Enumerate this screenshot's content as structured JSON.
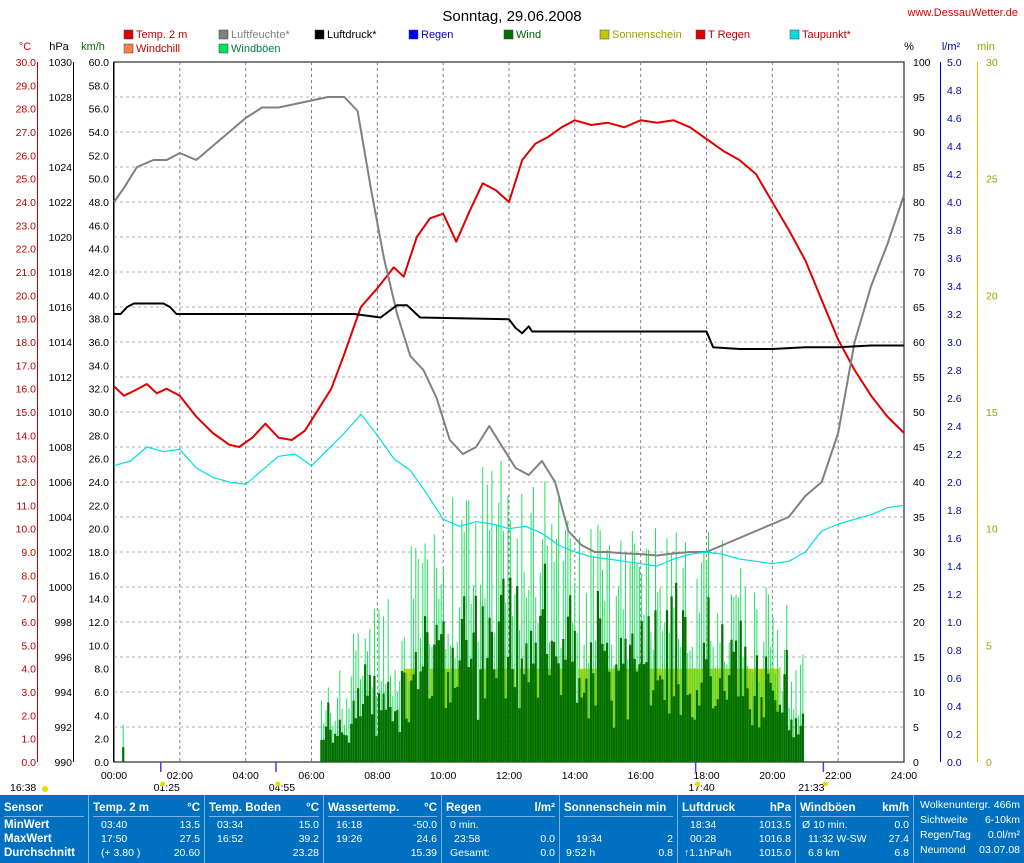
{
  "title": "Sonntag, 29.06.2008",
  "site": "www.DessauWetter.de",
  "legend": [
    {
      "label": "Temp. 2 m",
      "color": "#e00000"
    },
    {
      "label": "Luftfeuchte*",
      "color": "#808080"
    },
    {
      "label": "Luftdruck*",
      "color": "#000000"
    },
    {
      "label": "Regen",
      "color": "#0000ff"
    },
    {
      "label": "Wind",
      "color": "#007000"
    },
    {
      "label": "Sonnenschein",
      "color": "#c8c800"
    },
    {
      "label": "T Regen",
      "color": "#e00000"
    },
    {
      "label": "Taupunkt*",
      "color": "#00e0e0"
    },
    {
      "label": "Windchill",
      "color": "#ff8040"
    },
    {
      "label": "Windböen",
      "color": "#00e060"
    }
  ],
  "axes": {
    "temp": {
      "label": "°C",
      "color": "#e00000",
      "min": 0,
      "max": 30,
      "step": 1,
      "decimals": 1
    },
    "pressure": {
      "label": "hPa",
      "color": "#000000",
      "min": 990,
      "max": 1030,
      "step": 2,
      "decimals": 0
    },
    "wind": {
      "label": "km/h",
      "color": "#007000",
      "min": 0,
      "max": 60,
      "step": 2,
      "decimals": 1
    },
    "humidity": {
      "label": "%",
      "color": "#000000",
      "min": 0,
      "max": 100,
      "step": 5,
      "decimals": 0
    },
    "rain": {
      "label": "l/m²",
      "color": "#0000b0",
      "min": 0,
      "max": 5,
      "step": 0.2,
      "decimals": 1
    },
    "sun": {
      "label": "min",
      "color": "#c8c800",
      "min": 0,
      "max": 30,
      "step": 5,
      "decimals": 0
    },
    "time": [
      "00:00",
      "02:00",
      "04:00",
      "06:00",
      "08:00",
      "10:00",
      "12:00",
      "14:00",
      "16:00",
      "18:00",
      "20:00",
      "22:00",
      "24:00"
    ]
  },
  "astro_markers": [
    {
      "time": "16:38",
      "hour": -1
    },
    {
      "time": "01:25",
      "hour": 1.42
    },
    {
      "time": "04:55",
      "hour": 4.92
    },
    {
      "time": "17:40",
      "hour": 17.67
    },
    {
      "time": "21:33",
      "hour": 21.55
    }
  ],
  "chart_data": {
    "type": "line",
    "title": "Sonntag, 29.06.2008",
    "x_unit": "hour",
    "series": [
      {
        "name": "Temp. 2 m",
        "color": "#e00000",
        "axis": "temp",
        "x": [
          0,
          0.3,
          0.6,
          1,
          1.3,
          1.6,
          2,
          2.5,
          3,
          3.5,
          3.8,
          4.2,
          4.6,
          5,
          5.4,
          5.8,
          6.2,
          6.6,
          7,
          7.5,
          8,
          8.5,
          8.8,
          9.2,
          9.6,
          10,
          10.4,
          10.8,
          11.2,
          11.6,
          12,
          12.4,
          12.8,
          13.2,
          13.6,
          14,
          14.5,
          15,
          15.5,
          16,
          16.5,
          17,
          17.5,
          18,
          18.5,
          19,
          19.5,
          20,
          20.5,
          21,
          21.5,
          22,
          22.5,
          23,
          23.5,
          24
        ],
        "y": [
          16.1,
          15.7,
          15.9,
          16.2,
          15.8,
          16.0,
          15.7,
          14.8,
          14.1,
          13.6,
          13.5,
          13.9,
          14.5,
          13.9,
          13.8,
          14.2,
          15.1,
          16.0,
          17.5,
          19.5,
          20.3,
          21.2,
          20.8,
          22.5,
          23.3,
          23.5,
          22.3,
          23.6,
          24.8,
          24.5,
          24.0,
          25.8,
          26.5,
          26.8,
          27.2,
          27.5,
          27.3,
          27.4,
          27.2,
          27.5,
          27.4,
          27.5,
          27.2,
          26.7,
          26.2,
          25.8,
          25.2,
          24.0,
          22.8,
          21.5,
          19.8,
          18.1,
          16.8,
          15.7,
          14.8,
          14.1
        ]
      },
      {
        "name": "Luftfeuchte*",
        "color": "#808080",
        "axis": "humidity",
        "x": [
          0,
          0.3,
          0.7,
          1.2,
          1.6,
          2,
          2.5,
          3,
          3.5,
          4,
          4.5,
          5,
          5.5,
          6,
          6.5,
          7,
          7.4,
          7.8,
          8.2,
          8.6,
          9,
          9.4,
          9.8,
          10.2,
          10.6,
          11,
          11.4,
          11.8,
          12.2,
          12.6,
          13,
          13.4,
          13.8,
          14.2,
          14.6,
          15,
          15.5,
          16,
          16.5,
          17,
          17.5,
          18,
          18.5,
          19,
          19.5,
          20,
          20.5,
          21,
          21.5,
          22,
          22.5,
          23,
          23.5,
          24
        ],
        "y": [
          80,
          82,
          85,
          86,
          86,
          87,
          86,
          88,
          90,
          92,
          93.5,
          93.5,
          94,
          94.5,
          95,
          95,
          93,
          82,
          72,
          64,
          58,
          56,
          52,
          46,
          44,
          45,
          48,
          45,
          42,
          41,
          43,
          40,
          33,
          31,
          30,
          30,
          29.8,
          29.7,
          29.5,
          29.8,
          30,
          30,
          31,
          32,
          33,
          34,
          35,
          38,
          40,
          47,
          60,
          68,
          74,
          81
        ]
      },
      {
        "name": "Luftdruck*",
        "color": "#000000",
        "axis": "pressure",
        "x": [
          0,
          0.2,
          0.4,
          0.6,
          1.5,
          1.7,
          1.9,
          2.5,
          6,
          7.3,
          8.1,
          8.6,
          8.9,
          9.3,
          12,
          12.2,
          12.4,
          12.6,
          12.7,
          13,
          18,
          18.2,
          19,
          20,
          21,
          22,
          23,
          24
        ],
        "y": [
          1015.6,
          1015.6,
          1016.0,
          1016.2,
          1016.2,
          1016.0,
          1015.6,
          1015.6,
          1015.6,
          1015.6,
          1015.4,
          1016.1,
          1016.1,
          1015.4,
          1015.3,
          1014.8,
          1014.5,
          1014.9,
          1014.6,
          1014.6,
          1014.6,
          1013.7,
          1013.6,
          1013.6,
          1013.7,
          1013.7,
          1013.8,
          1013.8
        ]
      },
      {
        "name": "Taupunkt*",
        "color": "#00e0e0",
        "axis": "temp",
        "x": [
          0,
          0.5,
          1,
          1.5,
          2,
          2.5,
          3,
          3.5,
          4,
          4.5,
          5,
          5.5,
          6,
          6.5,
          7,
          7.5,
          8,
          8.5,
          9,
          9.5,
          10,
          10.5,
          11,
          11.5,
          12,
          12.5,
          13,
          13.5,
          14,
          14.5,
          15,
          15.5,
          16,
          16.5,
          17,
          17.5,
          18,
          18.5,
          19,
          19.5,
          20,
          20.5,
          21,
          21.5,
          22,
          22.5,
          23,
          23.5,
          24
        ],
        "y": [
          12.7,
          12.9,
          13.5,
          13.3,
          13.4,
          12.6,
          12.2,
          12.0,
          11.9,
          12.5,
          13.1,
          13.2,
          12.7,
          13.4,
          14.1,
          14.9,
          14.0,
          13.0,
          12.5,
          11.5,
          10.4,
          10.1,
          10.3,
          10.2,
          10.0,
          10.1,
          9.8,
          9.3,
          9.0,
          8.8,
          8.7,
          8.6,
          8.5,
          8.4,
          8.7,
          8.9,
          9.0,
          8.9,
          8.7,
          8.6,
          8.5,
          8.6,
          9.0,
          9.9,
          10.2,
          10.4,
          10.6,
          10.9,
          11.0
        ]
      },
      {
        "name": "Wind",
        "color": "#007000",
        "axis": "wind",
        "kind": "bars",
        "burst": true
      },
      {
        "name": "Windböen",
        "color": "#00e060",
        "axis": "wind",
        "kind": "bars",
        "burst": true
      },
      {
        "name": "Sonnenschein",
        "color": "#c8c800",
        "axis": "sun",
        "kind": "bars",
        "intervals": [
          [
            8.8,
            9.2
          ],
          [
            9.4,
            9.5
          ],
          [
            9.6,
            11.0
          ],
          [
            11.1,
            11.4
          ],
          [
            11.5,
            12.0
          ],
          [
            12.1,
            12.2
          ],
          [
            12.3,
            14.0
          ],
          [
            14.1,
            20.2
          ]
        ],
        "value": 4
      }
    ]
  },
  "stats": {
    "sensor": {
      "header": "Sensor",
      "rows": [
        "MinWert",
        "MaxWert",
        "Durchschnitt"
      ]
    },
    "temp": {
      "header": "Temp. 2 m",
      "unit": "°C",
      "rows": [
        [
          "03:40",
          "13.5"
        ],
        [
          "17:50",
          "27.5"
        ],
        [
          "(+ 3.80 )",
          "20.60"
        ]
      ]
    },
    "boden": {
      "header": "Temp. Boden",
      "unit": "°C",
      "rows": [
        [
          "03:34",
          "15.0"
        ],
        [
          "16:52",
          "39.2"
        ],
        [
          "",
          "23.28"
        ]
      ]
    },
    "wasser": {
      "header": "Wassertemp.",
      "unit": "°C",
      "rows": [
        [
          "16:18",
          "-50.0"
        ],
        [
          "19:26",
          "24.6"
        ],
        [
          "",
          "15.39"
        ]
      ]
    },
    "regen": {
      "header": "Regen",
      "unit": "l/m²",
      "rows": [
        [
          "0 min.",
          ""
        ],
        [
          "23:58",
          "0.0"
        ],
        [
          "Gesamt:",
          "0.0"
        ]
      ]
    },
    "sonne": {
      "header": "Sonnenschein min",
      "unit": "",
      "rows": [
        [
          "",
          ""
        ],
        [
          "19:34",
          "2"
        ],
        [
          "9:52 h",
          "0.8"
        ]
      ]
    },
    "druck": {
      "header": "Luftdruck",
      "unit": "hPa",
      "rows": [
        [
          "18:34",
          "1013.5"
        ],
        [
          "00:28",
          "1016.8"
        ],
        [
          "↑1.1hPa/h",
          "1015.0"
        ]
      ]
    },
    "boeen": {
      "header": "Windböen",
      "unit": "km/h",
      "rows": [
        [
          "Ø 10 min.",
          "0.0"
        ],
        [
          "11:32  W-SW",
          "27.4"
        ],
        [
          "6.8 km",
          "6.8"
        ]
      ]
    },
    "info": {
      "rows": [
        [
          "Wolkenuntergr.",
          "466m"
        ],
        [
          "Sichtweite",
          "6-10km"
        ],
        [
          "Regen/Tag",
          "0.0l/m²"
        ],
        [
          "Neumond",
          "03.07.08"
        ]
      ]
    }
  }
}
